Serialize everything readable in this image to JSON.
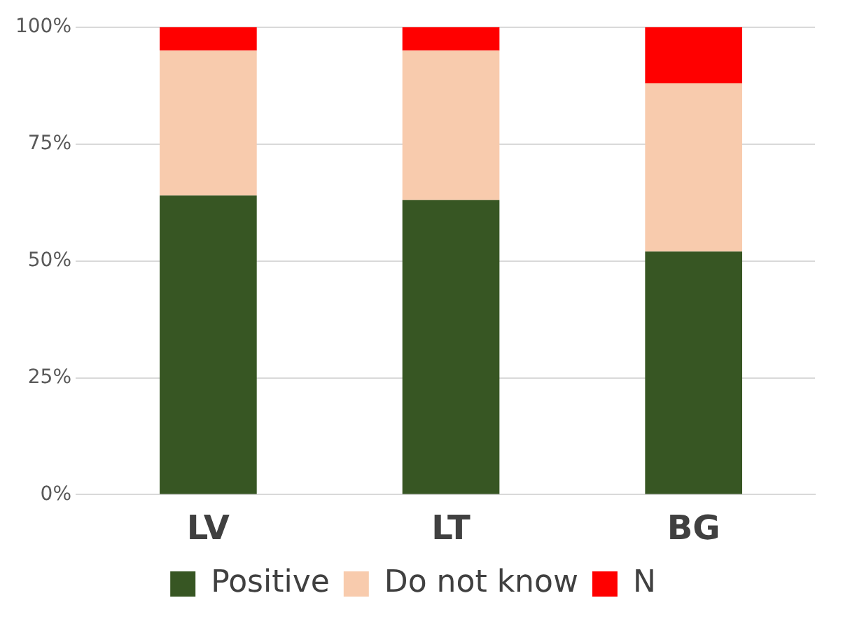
{
  "chart_data": {
    "type": "bar",
    "stacked": true,
    "categories": [
      "LV",
      "LT",
      "BG"
    ],
    "series": [
      {
        "name": "Positive",
        "color": "#375623",
        "values": [
          64,
          63,
          52
        ]
      },
      {
        "name": "Do not know",
        "color": "#f8cbad",
        "values": [
          31,
          32,
          36
        ]
      },
      {
        "name": "N",
        "color": "#ff0000",
        "values": [
          5,
          5,
          12
        ]
      }
    ],
    "ylim": [
      0,
      100
    ],
    "yticks": [
      {
        "value": 0,
        "label": "0%"
      },
      {
        "value": 25,
        "label": "25%"
      },
      {
        "value": 50,
        "label": "50%"
      },
      {
        "value": 75,
        "label": "75%"
      },
      {
        "value": 100,
        "label": "100%"
      }
    ],
    "grid": "y",
    "legend": "bottom"
  }
}
